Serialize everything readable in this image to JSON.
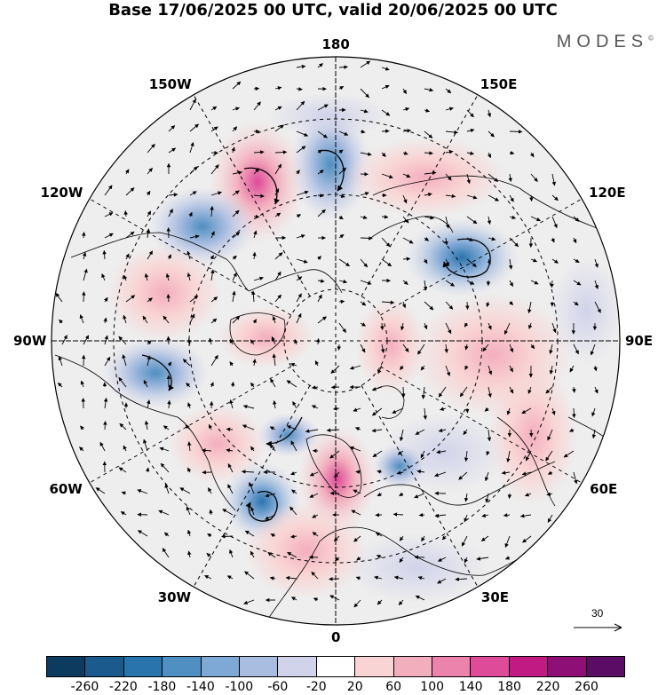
{
  "title": "Base 17/06/2025 00 UTC, valid 20/06/2025 00 UTC",
  "brand": "MODES",
  "brand_mark": "©",
  "map": {
    "projection": "north-polar-stereographic",
    "longitude_labels": [
      {
        "text": "180",
        "lon": 180
      },
      {
        "text": "150E",
        "lon": 150
      },
      {
        "text": "120E",
        "lon": 120
      },
      {
        "text": "90E",
        "lon": 90
      },
      {
        "text": "60E",
        "lon": 60
      },
      {
        "text": "30E",
        "lon": 30
      },
      {
        "text": "0",
        "lon": 0
      },
      {
        "text": "30W",
        "lon": -30
      },
      {
        "text": "60W",
        "lon": -60
      },
      {
        "text": "90W",
        "lon": -90
      },
      {
        "text": "120W",
        "lon": -120
      },
      {
        "text": "150W",
        "lon": -150
      }
    ],
    "latitude_circles": [
      30,
      50,
      70
    ],
    "background_color": "#eeeeee",
    "coast_color": "#000000",
    "wind_reference": {
      "value": "30",
      "icon": "right-arrow-icon"
    }
  },
  "colorbar": {
    "colors": [
      "#0d3b5f",
      "#1a5a8c",
      "#2a74ad",
      "#4f8fc1",
      "#7ea8d5",
      "#a9bde0",
      "#d1d3ea",
      "#ffffff",
      "#f9d4d4",
      "#f3aebe",
      "#ec83ad",
      "#de4b98",
      "#c21a83",
      "#8e1077",
      "#5b0d66"
    ],
    "ticks": [
      "-260",
      "-220",
      "-180",
      "-140",
      "-100",
      "-60",
      "-20",
      "20",
      "60",
      "100",
      "140",
      "180",
      "220",
      "260"
    ]
  }
}
